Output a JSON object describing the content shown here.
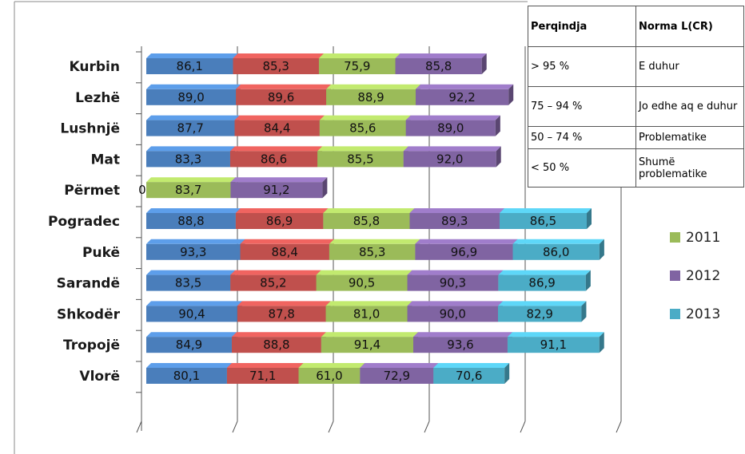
{
  "chart_data": {
    "type": "bar",
    "orientation": "horizontal-stacked-3d",
    "categories": [
      "Kurbin",
      "Lezhë",
      "Lushnjë",
      "Mat",
      "Përmet",
      "Pogradec",
      "Pukë",
      "Sarandë",
      "Shkodër",
      "Tropojë",
      "Vlorë"
    ],
    "series": [
      {
        "name": "",
        "color": "#4a7ebb",
        "values": [
          86.1,
          89.0,
          87.7,
          83.3,
          0.0,
          88.8,
          93.3,
          83.5,
          90.4,
          84.9,
          80.1
        ],
        "labels": [
          "86,1",
          "89,0",
          "87,7",
          "83,3",
          "0,0",
          "88,8",
          "93,3",
          "83,5",
          "90,4",
          "84,9",
          "80,1"
        ]
      },
      {
        "name": "",
        "color": "#c0504d",
        "values": [
          85.3,
          89.6,
          84.4,
          86.6,
          null,
          86.9,
          88.4,
          85.2,
          87.8,
          88.8,
          71.1
        ],
        "labels": [
          "85,3",
          "89,6",
          "84,4",
          "86,6",
          "",
          "86,9",
          "88,4",
          "85,2",
          "87,8",
          "88,8",
          "71,1"
        ]
      },
      {
        "name": "2011",
        "color": "#9bbb59",
        "values": [
          75.9,
          88.9,
          85.6,
          85.5,
          83.7,
          85.8,
          85.3,
          90.5,
          81.0,
          91.4,
          61.0
        ],
        "labels": [
          "75,9",
          "88,9",
          "85,6",
          "85,5",
          "83,7",
          "85,8",
          "85,3",
          "90,5",
          "81,0",
          "91,4",
          "61,0"
        ]
      },
      {
        "name": "2012",
        "color": "#8064a2",
        "values": [
          85.8,
          92.2,
          89.0,
          92.0,
          91.2,
          89.3,
          96.9,
          90.3,
          90.0,
          93.6,
          72.9
        ],
        "labels": [
          "85,8",
          "92,2",
          "89,0",
          "92,0",
          "91,2",
          "89,3",
          "96,9",
          "90,3",
          "90,0",
          "93,6",
          "72,9"
        ]
      },
      {
        "name": "2013",
        "color": "#4bacc6",
        "values": [
          null,
          null,
          null,
          null,
          null,
          86.5,
          86.0,
          86.9,
          82.9,
          91.1,
          70.6
        ],
        "labels": [
          "",
          "",
          "",
          "",
          "",
          "86,5",
          "86,0",
          "86,9",
          "82,9",
          "91,1",
          "70,6"
        ]
      }
    ],
    "legend": {
      "placement": "right",
      "visible_entries": [
        "2011",
        "2012",
        "2013"
      ]
    },
    "grid": true,
    "xlabel": "",
    "ylabel": ""
  },
  "table": {
    "headers": [
      "Perqindja",
      "Norma L(CR)"
    ],
    "rows": [
      [
        "> 95 %",
        "E duhur"
      ],
      [
        "75 – 94 %",
        "Jo edhe aq e duhur"
      ],
      [
        "50 – 74 %",
        "Problematike"
      ],
      [
        "< 50 %",
        "Shumë problematike"
      ]
    ]
  }
}
